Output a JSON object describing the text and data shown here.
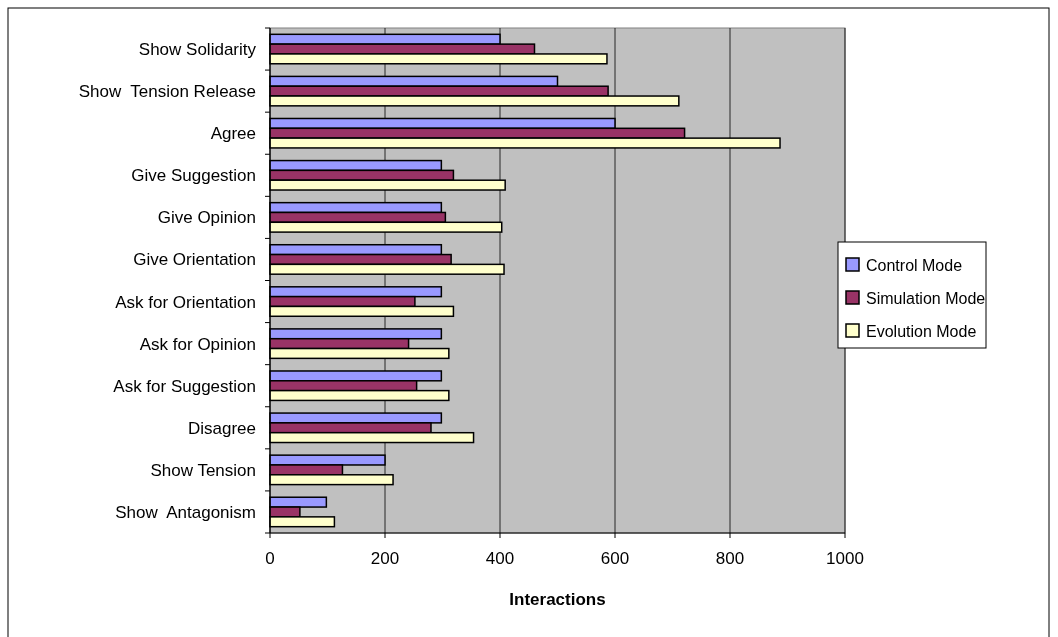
{
  "chart_data": {
    "type": "bar",
    "orientation": "horizontal",
    "xlabel": "Interactions",
    "categories": [
      "Show Solidarity",
      "Show  Tension Release",
      "Agree",
      "Give Suggestion",
      "Give Opinion",
      "Give Orientation",
      "Ask for Orientation",
      "Ask for Opinion",
      "Ask for Suggestion",
      "Disagree",
      "Show Tension",
      "Show  Antagonism"
    ],
    "series": [
      {
        "name": "Control Mode",
        "color": "#9999ff",
        "values": [
          400,
          500,
          600,
          298,
          298,
          298,
          298,
          298,
          298,
          298,
          200,
          98
        ]
      },
      {
        "name": "Simulation Mode",
        "color": "#993366",
        "values": [
          460,
          588,
          721,
          319,
          305,
          315,
          252,
          241,
          255,
          280,
          126,
          52
        ]
      },
      {
        "name": "Evolution Mode",
        "color": "#ffffcc",
        "values": [
          586,
          711,
          887,
          409,
          403,
          407,
          319,
          311,
          311,
          354,
          214,
          112
        ]
      }
    ],
    "xlim": [
      0,
      1000
    ],
    "xticks": [
      0,
      200,
      400,
      600,
      800,
      1000
    ],
    "grid": "x",
    "legend": "right"
  }
}
